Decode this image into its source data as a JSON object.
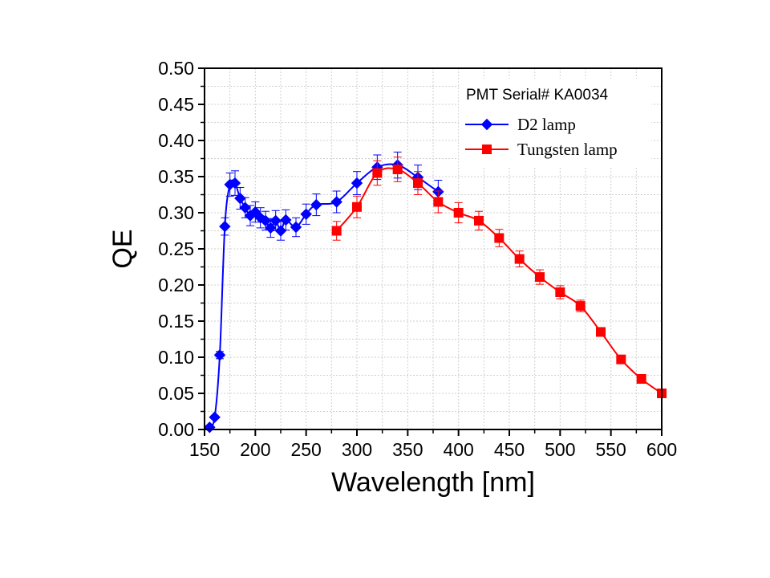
{
  "chart_data": {
    "type": "line",
    "xlabel": "Wavelength [nm]",
    "ylabel": "QE",
    "xlim": [
      150,
      600
    ],
    "ylim": [
      0.0,
      0.5
    ],
    "x_ticks": [
      "150",
      "200",
      "250",
      "300",
      "350",
      "400",
      "450",
      "500",
      "550",
      "600"
    ],
    "y_ticks": [
      "0.00",
      "0.05",
      "0.10",
      "0.15",
      "0.20",
      "0.25",
      "0.30",
      "0.35",
      "0.40",
      "0.45",
      "0.50"
    ],
    "grid": true,
    "legend": {
      "title": "PMT Serial# KA0034",
      "placement": "top-right"
    },
    "series": [
      {
        "name": "D2 lamp",
        "color": "#0000ff",
        "marker": "diamond",
        "x": [
          155,
          160,
          165,
          170,
          175,
          180,
          185,
          190,
          195,
          200,
          205,
          210,
          215,
          220,
          225,
          230,
          240,
          250,
          260,
          280,
          300,
          320,
          340,
          360,
          380
        ],
        "y": [
          0.003,
          0.017,
          0.103,
          0.281,
          0.339,
          0.341,
          0.32,
          0.307,
          0.296,
          0.301,
          0.293,
          0.289,
          0.279,
          0.289,
          0.275,
          0.29,
          0.28,
          0.298,
          0.311,
          0.315,
          0.341,
          0.363,
          0.366,
          0.349,
          0.329
        ],
        "err": [
          0.0,
          0.002,
          0.005,
          0.012,
          0.016,
          0.017,
          0.015,
          0.014,
          0.014,
          0.014,
          0.014,
          0.013,
          0.013,
          0.014,
          0.013,
          0.014,
          0.013,
          0.014,
          0.015,
          0.015,
          0.016,
          0.017,
          0.018,
          0.017,
          0.016
        ]
      },
      {
        "name": "Tungsten lamp",
        "color": "#ff0000",
        "marker": "square",
        "x": [
          280,
          300,
          320,
          340,
          360,
          380,
          400,
          420,
          440,
          460,
          480,
          500,
          520,
          540,
          560,
          580,
          600
        ],
        "y": [
          0.275,
          0.308,
          0.355,
          0.36,
          0.341,
          0.315,
          0.3,
          0.289,
          0.265,
          0.236,
          0.211,
          0.19,
          0.171,
          0.135,
          0.097,
          0.07,
          0.05
        ],
        "err": [
          0.013,
          0.015,
          0.017,
          0.017,
          0.016,
          0.015,
          0.014,
          0.013,
          0.012,
          0.011,
          0.01,
          0.009,
          0.008,
          0.006,
          0.004,
          0.003,
          0.002
        ]
      }
    ]
  }
}
